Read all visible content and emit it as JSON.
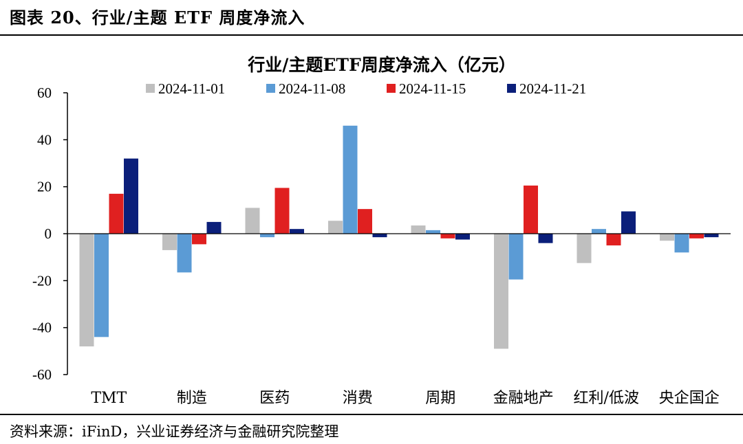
{
  "figure_title": "图表 20、行业/主题 ETF 周度净流入",
  "source": "资料来源：iFinD，兴业证券经济与金融研究院整理",
  "chart_data": {
    "type": "bar",
    "title": "行业/主题ETF周度净流入（亿元）",
    "xlabel": "",
    "ylabel": "",
    "ylim": [
      -60,
      60
    ],
    "yticks": [
      60,
      40,
      20,
      0,
      -20,
      -40,
      -60
    ],
    "ytick_labels": [
      "60",
      "40",
      "20",
      "0",
      "-20",
      "-40",
      "-60"
    ],
    "grid": false,
    "legend_position": "top",
    "categories": [
      "TMT",
      "制造",
      "医药",
      "消费",
      "周期",
      "金融地产",
      "红利/低波",
      "央企国企"
    ],
    "series": [
      {
        "name": "2024-11-01",
        "color": "#bfbfbf",
        "values": [
          -48,
          -7,
          11,
          5.5,
          3.5,
          -49,
          -12.5,
          -3
        ]
      },
      {
        "name": "2024-11-08",
        "color": "#5b9bd5",
        "values": [
          -44,
          -16.5,
          -1.5,
          46,
          1.5,
          -19.5,
          2,
          -8
        ]
      },
      {
        "name": "2024-11-15",
        "color": "#e02020",
        "values": [
          17,
          -4.5,
          19.5,
          10.5,
          -2,
          20.5,
          -5,
          -2
        ]
      },
      {
        "name": "2024-11-21",
        "color": "#0b1f7a",
        "values": [
          32,
          5,
          2,
          -1.5,
          -2.5,
          -4,
          9.5,
          -1.5
        ]
      }
    ]
  }
}
